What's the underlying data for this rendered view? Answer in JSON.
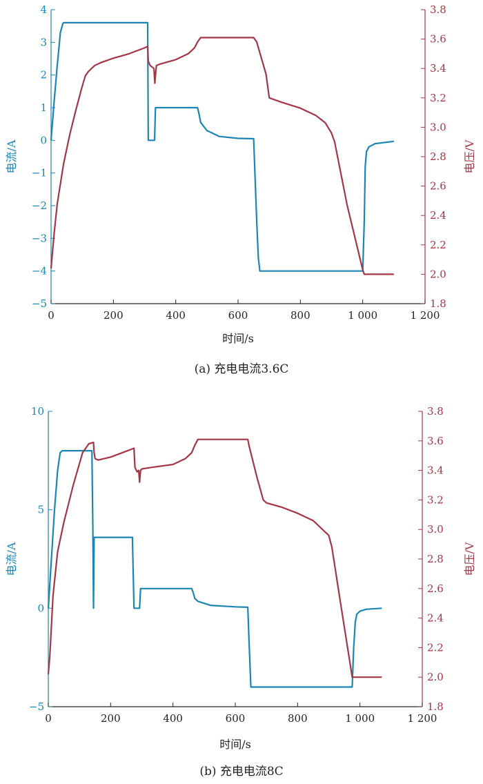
{
  "chart_data": [
    {
      "type": "line",
      "caption": "(a) 充电电流3.6C",
      "xlabel": "时间/s",
      "ylabel_left": "电流/A",
      "ylabel_right": "电压/V",
      "xlim": [
        0,
        1200
      ],
      "ylim_left": [
        -5,
        4
      ],
      "ylim_right": [
        1.8,
        3.8
      ],
      "x_ticks": [
        "0",
        "200",
        "400",
        "600",
        "800",
        "1 000",
        "1 200"
      ],
      "y_ticks_left": [
        "4",
        "3",
        "2",
        "1",
        "0",
        "−1",
        "−2",
        "−3",
        "−4",
        "−5"
      ],
      "y_ticks_right": [
        "3.8",
        "3.6",
        "3.4",
        "3.2",
        "3.0",
        "2.8",
        "2.6",
        "2.4",
        "2.2",
        "2.0",
        "1.8"
      ],
      "colors": {
        "current": "#1a85b4",
        "voltage": "#a33545"
      },
      "series": [
        {
          "name": "电流",
          "axis": "left",
          "x": [
            0,
            10,
            20,
            30,
            38,
            40,
            100,
            200,
            300,
            310,
            311,
            312,
            330,
            331,
            332,
            335,
            340,
            400,
            470,
            475,
            480,
            500,
            540,
            600,
            650,
            655,
            660,
            665,
            670,
            700,
            800,
            900,
            1000,
            1005,
            1008,
            1012,
            1020,
            1040,
            1100
          ],
          "y": [
            0,
            1.2,
            2.3,
            3.3,
            3.58,
            3.6,
            3.6,
            3.6,
            3.6,
            3.6,
            1.5,
            0,
            0,
            0,
            0,
            1.0,
            1.0,
            1.0,
            1.0,
            0.8,
            0.55,
            0.3,
            0.12,
            0.06,
            0.05,
            -1.2,
            -2.5,
            -3.6,
            -4.0,
            -4.0,
            -4.0,
            -4.0,
            -4.0,
            -2.5,
            -0.8,
            -0.35,
            -0.2,
            -0.1,
            -0.03
          ]
        },
        {
          "name": "电压",
          "axis": "right",
          "x": [
            0,
            10,
            20,
            40,
            60,
            80,
            100,
            110,
            120,
            140,
            160,
            200,
            250,
            300,
            310,
            312,
            318,
            330,
            333,
            336,
            338,
            350,
            400,
            440,
            460,
            470,
            480,
            490,
            550,
            600,
            650,
            660,
            690,
            700,
            740,
            800,
            850,
            880,
            900,
            910,
            950,
            1000,
            1005,
            1008,
            1100
          ],
          "y": [
            2.04,
            2.28,
            2.48,
            2.75,
            2.95,
            3.12,
            3.28,
            3.35,
            3.38,
            3.42,
            3.44,
            3.47,
            3.5,
            3.54,
            3.55,
            3.45,
            3.42,
            3.4,
            3.3,
            3.38,
            3.42,
            3.43,
            3.46,
            3.5,
            3.54,
            3.58,
            3.61,
            3.61,
            3.61,
            3.61,
            3.61,
            3.58,
            3.36,
            3.2,
            3.17,
            3.13,
            3.08,
            3.03,
            2.96,
            2.9,
            2.47,
            2.03,
            2.0,
            2.0,
            2.0
          ]
        }
      ]
    },
    {
      "type": "line",
      "caption": "(b) 充电电流8C",
      "xlabel": "时间/s",
      "ylabel_left": "电流/A",
      "ylabel_right": "电压/V",
      "xlim": [
        0,
        1200
      ],
      "ylim_left": [
        -5,
        10
      ],
      "ylim_right": [
        1.8,
        3.8
      ],
      "x_ticks": [
        "0",
        "200",
        "400",
        "600",
        "800",
        "1 000",
        "1 200"
      ],
      "y_ticks_left": [
        "10",
        "5",
        "0",
        "−5"
      ],
      "y_ticks_right": [
        "3.8",
        "3.6",
        "3.4",
        "3.2",
        "3.0",
        "2.8",
        "2.6",
        "2.4",
        "2.2",
        "2.0",
        "1.8"
      ],
      "colors": {
        "current": "#1a85b4",
        "voltage": "#a33545"
      },
      "series": [
        {
          "name": "电流",
          "axis": "left",
          "x": [
            0,
            10,
            20,
            30,
            38,
            45,
            100,
            140,
            143,
            145,
            147,
            150,
            200,
            270,
            275,
            278,
            290,
            293,
            296,
            300,
            400,
            460,
            465,
            470,
            480,
            520,
            600,
            640,
            645,
            650,
            700,
            800,
            900,
            975,
            980,
            985,
            990,
            1000,
            1020,
            1070
          ],
          "y": [
            0,
            2.5,
            5.0,
            7.0,
            7.9,
            8.0,
            8.0,
            8.0,
            4.0,
            0,
            3.6,
            3.6,
            3.6,
            3.6,
            0,
            0,
            0,
            0,
            1.0,
            1.0,
            1.0,
            1.0,
            0.8,
            0.5,
            0.35,
            0.15,
            0.07,
            0.05,
            -2.0,
            -4.0,
            -4.0,
            -4.0,
            -4.0,
            -4.0,
            -2.0,
            -0.7,
            -0.3,
            -0.15,
            -0.05,
            0
          ]
        },
        {
          "name": "电压",
          "axis": "right",
          "x": [
            0,
            5,
            15,
            30,
            50,
            80,
            110,
            130,
            145,
            147,
            150,
            160,
            200,
            250,
            275,
            278,
            285,
            290,
            293,
            296,
            300,
            330,
            400,
            440,
            460,
            470,
            480,
            500,
            550,
            600,
            640,
            645,
            670,
            690,
            700,
            750,
            800,
            850,
            900,
            910,
            940,
            970,
            975,
            980,
            1070
          ],
          "y": [
            2.02,
            2.15,
            2.55,
            2.85,
            3.05,
            3.3,
            3.52,
            3.58,
            3.59,
            3.52,
            3.48,
            3.47,
            3.49,
            3.53,
            3.55,
            3.42,
            3.39,
            3.4,
            3.32,
            3.4,
            3.41,
            3.42,
            3.44,
            3.48,
            3.52,
            3.57,
            3.61,
            3.61,
            3.61,
            3.61,
            3.61,
            3.56,
            3.35,
            3.2,
            3.18,
            3.15,
            3.11,
            3.06,
            2.96,
            2.88,
            2.47,
            2.07,
            2.0,
            2.0,
            2.0
          ]
        }
      ]
    }
  ]
}
